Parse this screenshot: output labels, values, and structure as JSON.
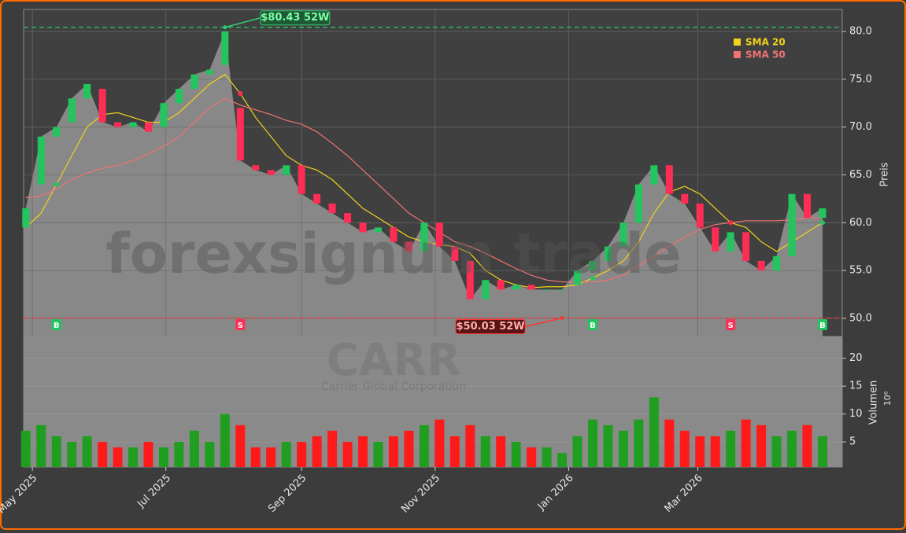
{
  "chart_data": {
    "type": "candlestick",
    "watermark": "forexsignum trade",
    "symbol": "CARR",
    "company": "Carrier Global Corporation",
    "ylabel": "Preis",
    "x": [
      "2025-04-28",
      "2025-05-05",
      "2025-05-12",
      "2025-05-19",
      "2025-05-26",
      "2025-06-02",
      "2025-06-09",
      "2025-06-16",
      "2025-06-23",
      "2025-06-30",
      "2025-07-07",
      "2025-07-14",
      "2025-07-21",
      "2025-07-28",
      "2025-08-04",
      "2025-08-11",
      "2025-08-18",
      "2025-08-25",
      "2025-09-01",
      "2025-09-08",
      "2025-09-15",
      "2025-09-22",
      "2025-09-29",
      "2025-10-06",
      "2025-10-13",
      "2025-10-20",
      "2025-10-27",
      "2025-11-03",
      "2025-11-10",
      "2025-11-17",
      "2025-11-24",
      "2025-12-01",
      "2025-12-08",
      "2025-12-15",
      "2025-12-22",
      "2025-12-29",
      "2026-01-05",
      "2026-01-12",
      "2026-01-19",
      "2026-01-26",
      "2026-02-02",
      "2026-02-09",
      "2026-02-16",
      "2026-02-23",
      "2026-03-02",
      "2026-03-09",
      "2026-03-16",
      "2026-03-23",
      "2026-03-30",
      "2026-04-06",
      "2026-04-13",
      "2026-04-20",
      "2026-04-27"
    ],
    "open": [
      59.5,
      64,
      69,
      70.5,
      73,
      74,
      70.5,
      70,
      70.5,
      70,
      72.5,
      74,
      75.5,
      76.5,
      72,
      66,
      65.5,
      65,
      66,
      63,
      62,
      61,
      60,
      59,
      59.5,
      58,
      57,
      60,
      57.5,
      56,
      52,
      54,
      53,
      53.5,
      53,
      53,
      53.5,
      55,
      56,
      57.5,
      60,
      64,
      66,
      63,
      62,
      59.5,
      57,
      59,
      56,
      55,
      56.5,
      63,
      60.5
    ],
    "high": {
      "value": 80.43,
      "x": "2025-07-28",
      "label": "$80.43 52W",
      "color": "#2ecc71"
    },
    "low": {
      "value": 50.03,
      "x": "2025-12-29",
      "label": "$50.03 52W",
      "color": "#ff3333"
    },
    "close": [
      61.5,
      69,
      70,
      73,
      74.5,
      70.5,
      70,
      70.5,
      69.5,
      72.5,
      74,
      75.5,
      76,
      80,
      66.5,
      65.5,
      65,
      66,
      63,
      62,
      61,
      60,
      59,
      59.5,
      58,
      57,
      60,
      57.5,
      56,
      52,
      54,
      53,
      53.5,
      53,
      53,
      53,
      55,
      56,
      57.5,
      60,
      64,
      66,
      63,
      62,
      59.5,
      57,
      59,
      56,
      55,
      56.5,
      63,
      60.5,
      61.5
    ],
    "series": [
      {
        "name": "SMA 20",
        "color": "#f2d21b",
        "values": [
          59.5,
          61,
          64,
          67,
          70,
          71.3,
          71.5,
          71,
          70.5,
          70.5,
          71.5,
          73,
          74.5,
          75.5,
          73.5,
          71,
          69,
          67,
          66,
          65.5,
          64.5,
          63,
          61.5,
          60.5,
          59.5,
          58.5,
          58,
          57.7,
          57.5,
          56.8,
          55,
          54,
          53.5,
          53.2,
          53.3,
          53.3,
          53.5,
          54.2,
          55,
          56,
          58,
          61,
          63.2,
          63.8,
          63,
          61.5,
          60,
          59.5,
          58,
          57,
          58,
          59,
          60
        ]
      },
      {
        "name": "SMA 50",
        "color": "#f07373",
        "values": [
          62.6,
          62.8,
          63.5,
          64.5,
          65.2,
          65.7,
          66,
          66.5,
          67.2,
          68,
          69,
          70.5,
          72,
          73,
          72.3,
          71.8,
          71.3,
          70.7,
          70.3,
          69.5,
          68.3,
          67,
          65.5,
          64,
          62.5,
          61,
          60,
          59,
          58,
          57.5,
          56.8,
          56,
          55.2,
          54.5,
          54,
          53.8,
          53.8,
          53.8,
          54,
          54.5,
          55.5,
          56.5,
          57.5,
          58.5,
          59.3,
          59.8,
          60,
          60.2,
          60.2,
          60.2,
          60.3,
          60.5,
          60.5
        ]
      }
    ],
    "up_color": "#22c55e",
    "down_color": "#ff2d55",
    "xlim": [
      "2025-04-27",
      "2026-05-06"
    ],
    "xticks": [
      {
        "value": "2025-05-01",
        "label": "May 2025"
      },
      {
        "value": "2025-07-01",
        "label": "Jul 2025"
      },
      {
        "value": "2025-09-01",
        "label": "Sep 2025"
      },
      {
        "value": "2025-11-01",
        "label": "Nov 2025"
      },
      {
        "value": "2026-01-01",
        "label": "Jan 2026"
      },
      {
        "value": "2026-03-01",
        "label": "Mar 2026"
      }
    ],
    "ylim": [
      48.1,
      82.3
    ],
    "yticks": [
      {
        "value": 50,
        "label": "50.0"
      },
      {
        "value": 55,
        "label": "55.0"
      },
      {
        "value": 60,
        "label": "60.0"
      },
      {
        "value": 65,
        "label": "65.0"
      },
      {
        "value": 70,
        "label": "70.0"
      },
      {
        "value": 75,
        "label": "75.0"
      },
      {
        "value": 80,
        "label": "80.0"
      }
    ],
    "grid": true,
    "legend": "upper right",
    "signals": [
      {
        "x": "2025-05-12",
        "label": "B",
        "color": "#22c55e"
      },
      {
        "x": "2025-08-04",
        "label": "S",
        "color": "#ff2d55"
      },
      {
        "x": "2026-01-12",
        "label": "B",
        "color": "#22c55e"
      },
      {
        "x": "2026-03-16",
        "label": "S",
        "color": "#ff2d55"
      },
      {
        "x": "2026-04-27",
        "label": "B",
        "color": "#22c55e"
      }
    ],
    "volume": {
      "label": "Volumen",
      "unit": "10⁶",
      "values": [
        7,
        8,
        6,
        5,
        6,
        5,
        4,
        4,
        5,
        4,
        5,
        7,
        5,
        10,
        8,
        4,
        4,
        5,
        5,
        6,
        7,
        5,
        6,
        5,
        6,
        7,
        8,
        9,
        6,
        8,
        6,
        6,
        5,
        4,
        4,
        3,
        6,
        9,
        8,
        7,
        9,
        13,
        9,
        7,
        6,
        6,
        7,
        9,
        8,
        6,
        7,
        8,
        6
      ],
      "up_color": "#1f9e1f",
      "down_color": "#ff1a1a",
      "ylim": [
        0.5,
        23.9
      ],
      "yticks": [
        5,
        10,
        15,
        20
      ]
    }
  }
}
